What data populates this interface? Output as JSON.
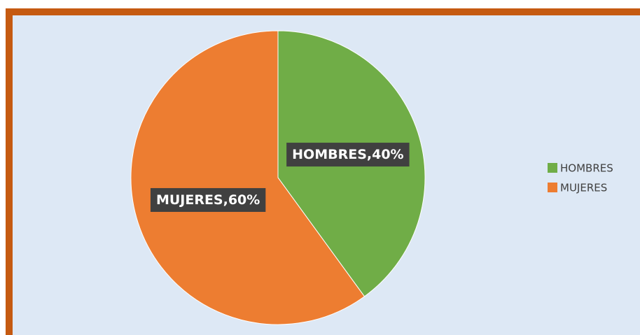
{
  "chart_data": {
    "type": "pie",
    "categories": [
      "HOMBRES",
      "MUJERES"
    ],
    "values": [
      40,
      60
    ],
    "value_labels": [
      "HOMBRES,40%",
      "MUJERES,60%"
    ],
    "colors": [
      "#70ad47",
      "#ed7d31"
    ],
    "legend": "right"
  }
}
